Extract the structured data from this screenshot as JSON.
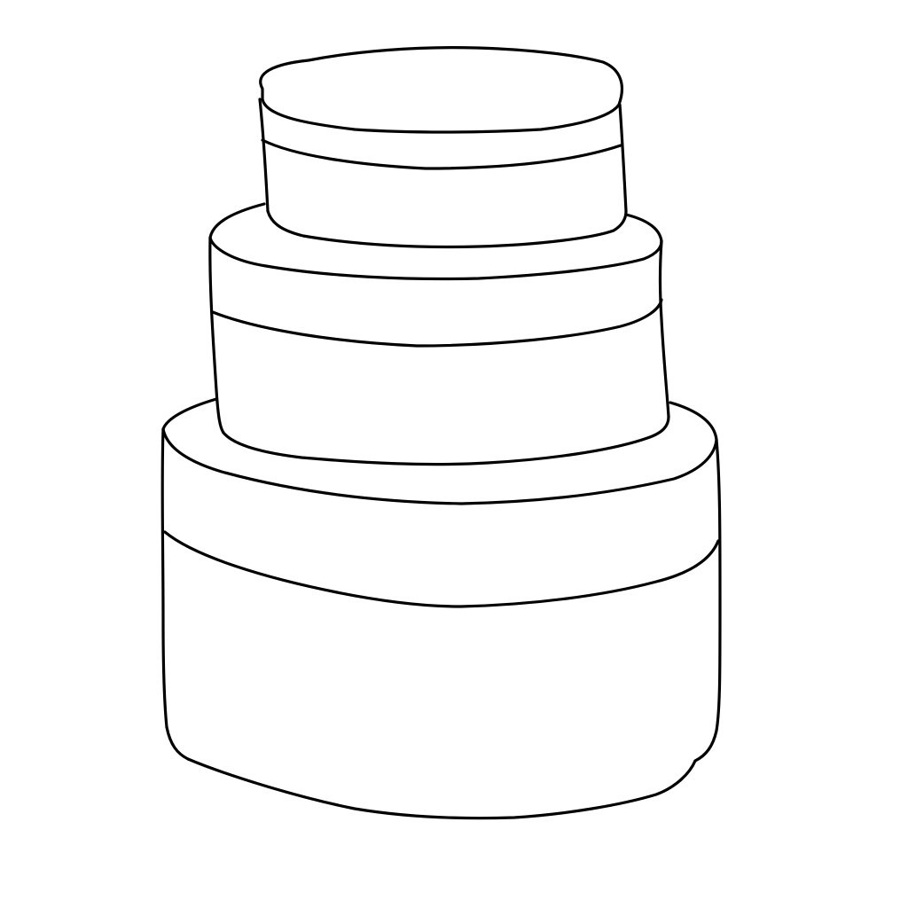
{
  "artwork": {
    "subject": "three-tier-cake-outline",
    "style": "line-art",
    "background_color": "#ffffff",
    "stroke_color": "#000000",
    "tier_count": 3
  }
}
